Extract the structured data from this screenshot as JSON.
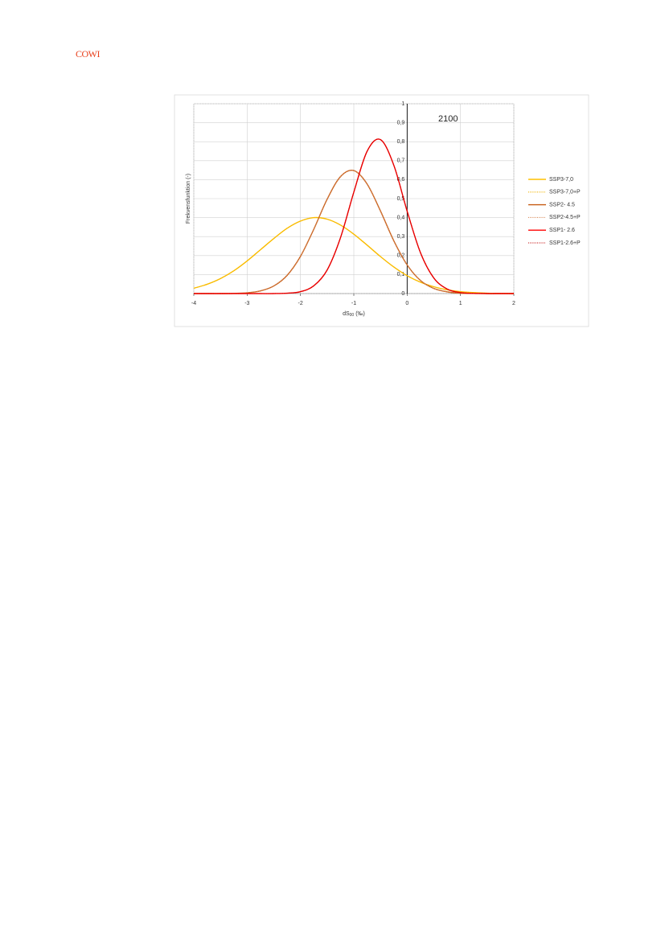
{
  "header": {
    "logo": "COWI"
  },
  "chart_data": {
    "type": "line",
    "annotation": "2100",
    "y_label": "Frekvensfunktion (-)",
    "x_label": "dS",
    "x_label_sub": "00",
    "x_label_unit": "(‰)",
    "x": [
      -4,
      -3.75,
      -3.5,
      -3.25,
      -3,
      -2.75,
      -2.5,
      -2.25,
      -2,
      -1.75,
      -1.5,
      -1.25,
      -1,
      -0.75,
      -0.5,
      -0.25,
      0,
      0.25,
      0.5,
      0.75,
      1,
      1.25,
      1.5,
      1.75,
      2
    ],
    "series": [
      {
        "name": "SSP3-7,0",
        "color": "#ffc000",
        "dash": false,
        "values": [
          0.028,
          0.049,
          0.079,
          0.12,
          0.172,
          0.231,
          0.29,
          0.344,
          0.382,
          0.4,
          0.392,
          0.361,
          0.313,
          0.255,
          0.195,
          0.14,
          0.094,
          0.06,
          0.036,
          0.02,
          0.01,
          0.005,
          0.002,
          0.001,
          0
        ]
      },
      {
        "name": "SSP3-7,0+P",
        "color": "#f0b400",
        "dash": true,
        "values": [
          0.028,
          0.049,
          0.079,
          0.12,
          0.172,
          0.231,
          0.29,
          0.344,
          0.382,
          0.4,
          0.392,
          0.361,
          0.313,
          0.255,
          0.195,
          0.14,
          0.094,
          0.06,
          0.036,
          0.02,
          0.01,
          0.005,
          0.002,
          0.001,
          0
        ]
      },
      {
        "name": "SSP2- 4.5",
        "color": "#c55a11",
        "dash": false,
        "values": [
          0,
          0,
          0,
          0.001,
          0.004,
          0.014,
          0.04,
          0.096,
          0.196,
          0.339,
          0.497,
          0.616,
          0.648,
          0.577,
          0.435,
          0.278,
          0.151,
          0.069,
          0.027,
          0.009,
          0.002,
          0.001,
          0,
          0,
          0
        ]
      },
      {
        "name": "SSP2-4.5+P",
        "color": "#d88a5a",
        "dash": true,
        "values": [
          0,
          0,
          0,
          0.001,
          0.004,
          0.014,
          0.04,
          0.096,
          0.196,
          0.339,
          0.497,
          0.616,
          0.648,
          0.577,
          0.435,
          0.278,
          0.151,
          0.069,
          0.027,
          0.009,
          0.002,
          0.001,
          0,
          0,
          0
        ]
      },
      {
        "name": "SSP1- 2.6",
        "color": "#ff0000",
        "dash": false,
        "values": [
          0,
          0,
          0,
          0,
          0,
          0,
          0,
          0.002,
          0.01,
          0.041,
          0.124,
          0.294,
          0.534,
          0.75,
          0.811,
          0.676,
          0.434,
          0.215,
          0.082,
          0.024,
          0.005,
          0.001,
          0,
          0,
          0
        ]
      },
      {
        "name": "SSP1-2.6+P",
        "color": "#c00000",
        "dash": true,
        "values": [
          0,
          0,
          0,
          0,
          0,
          0,
          0,
          0.002,
          0.01,
          0.041,
          0.124,
          0.294,
          0.534,
          0.75,
          0.811,
          0.676,
          0.434,
          0.215,
          0.082,
          0.024,
          0.005,
          0.001,
          0,
          0,
          0
        ]
      }
    ],
    "xlim": [
      -4,
      2
    ],
    "xticks": [
      -4,
      -3,
      -2,
      -1,
      0,
      1,
      2
    ],
    "ylim": [
      0,
      1
    ],
    "yticks": [
      0,
      {
        "value": 0.1,
        "label": "0,1"
      },
      {
        "value": 0.2,
        "label": "0,2"
      },
      {
        "value": 0.3,
        "label": "0,3"
      },
      {
        "value": 0.4,
        "label": "0,4"
      },
      {
        "value": 0.5,
        "label": "0,5"
      },
      {
        "value": 0.6,
        "label": "0,6"
      },
      {
        "value": 0.7,
        "label": "0,7"
      },
      {
        "value": 0.8,
        "label": "0,8"
      },
      {
        "value": 0.9,
        "label": "0,9"
      },
      1
    ],
    "grid": true,
    "legend": "right"
  }
}
